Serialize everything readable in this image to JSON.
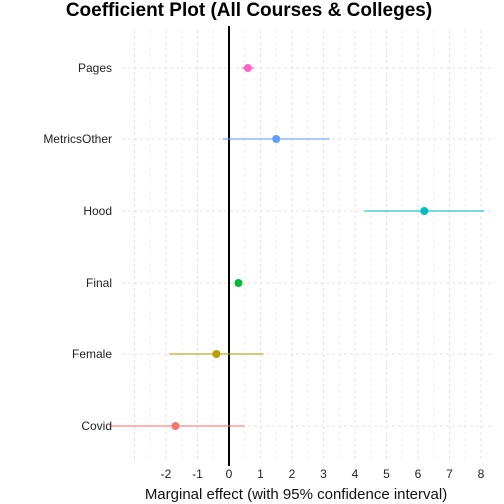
{
  "chart_data": {
    "type": "scatter",
    "title": "Coefficient Plot (All Courses & Colleges)",
    "xlabel": "Marginal effect (with 95% confidence interval)",
    "ylabel": "",
    "xlim": [
      -3.8,
      8.7
    ],
    "x_ticks": [
      "-2",
      "-1",
      "0",
      "1",
      "2",
      "3",
      "4",
      "5",
      "6",
      "7",
      "8"
    ],
    "reference_line": 0,
    "grid": true,
    "legend": "none",
    "categories": [
      "Pages",
      "MetricsOther",
      "Hood",
      "Final",
      "Female",
      "Covid"
    ],
    "series": [
      {
        "category": "Pages",
        "estimate": 0.6,
        "lower": 0.4,
        "upper": 0.8,
        "color": "#ff61c3"
      },
      {
        "category": "MetricsOther",
        "estimate": 1.5,
        "lower": -0.2,
        "upper": 3.2,
        "color": "#619cff"
      },
      {
        "category": "Hood",
        "estimate": 6.2,
        "lower": 4.3,
        "upper": 8.1,
        "color": "#00bfc4"
      },
      {
        "category": "Final",
        "estimate": 0.3,
        "lower": 0.2,
        "upper": 0.4,
        "color": "#00ba38"
      },
      {
        "category": "Female",
        "estimate": -0.4,
        "lower": -1.9,
        "upper": 1.1,
        "color": "#b79f00"
      },
      {
        "category": "Covid",
        "estimate": -1.7,
        "lower": -3.8,
        "upper": 0.5,
        "color": "#f8766d"
      }
    ]
  }
}
